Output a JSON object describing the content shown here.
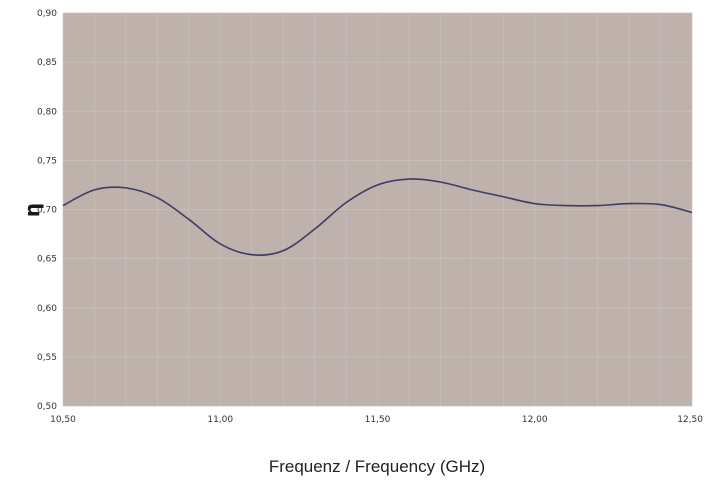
{
  "chart_data": {
    "type": "line",
    "xlabel": "Frequenz / Frequency (GHz)",
    "ylabel": "η",
    "xlim": [
      10.5,
      12.5
    ],
    "ylim": [
      0.5,
      0.9
    ],
    "grid": true,
    "x_ticks": [
      10.5,
      11.0,
      11.5,
      12.0,
      12.5
    ],
    "x_tick_labels": [
      "10,50",
      "11,00",
      "11,50",
      "12,00",
      "12,50"
    ],
    "y_ticks": [
      0.5,
      0.55,
      0.6,
      0.65,
      0.7,
      0.75,
      0.8,
      0.85,
      0.9
    ],
    "y_tick_labels": [
      "0,50",
      "0,55",
      "0,60",
      "0,65",
      "0,70",
      "0,75",
      "0,80",
      "0,85",
      "0,90"
    ],
    "series": [
      {
        "color": "#3d3d66",
        "x": [
          10.5,
          10.6,
          10.7,
          10.8,
          10.9,
          11.0,
          11.1,
          11.2,
          11.3,
          11.4,
          11.5,
          11.6,
          11.7,
          11.8,
          11.9,
          12.0,
          12.1,
          12.2,
          12.3,
          12.4,
          12.5
        ],
        "y": [
          0.704,
          0.72,
          0.722,
          0.712,
          0.69,
          0.665,
          0.654,
          0.658,
          0.68,
          0.707,
          0.725,
          0.731,
          0.728,
          0.72,
          0.713,
          0.706,
          0.704,
          0.704,
          0.706,
          0.705,
          0.697
        ]
      }
    ],
    "colors": {
      "plot_background": "#bfb1ab",
      "grid": "#cdc2bd",
      "line": "#3d3d66"
    }
  }
}
